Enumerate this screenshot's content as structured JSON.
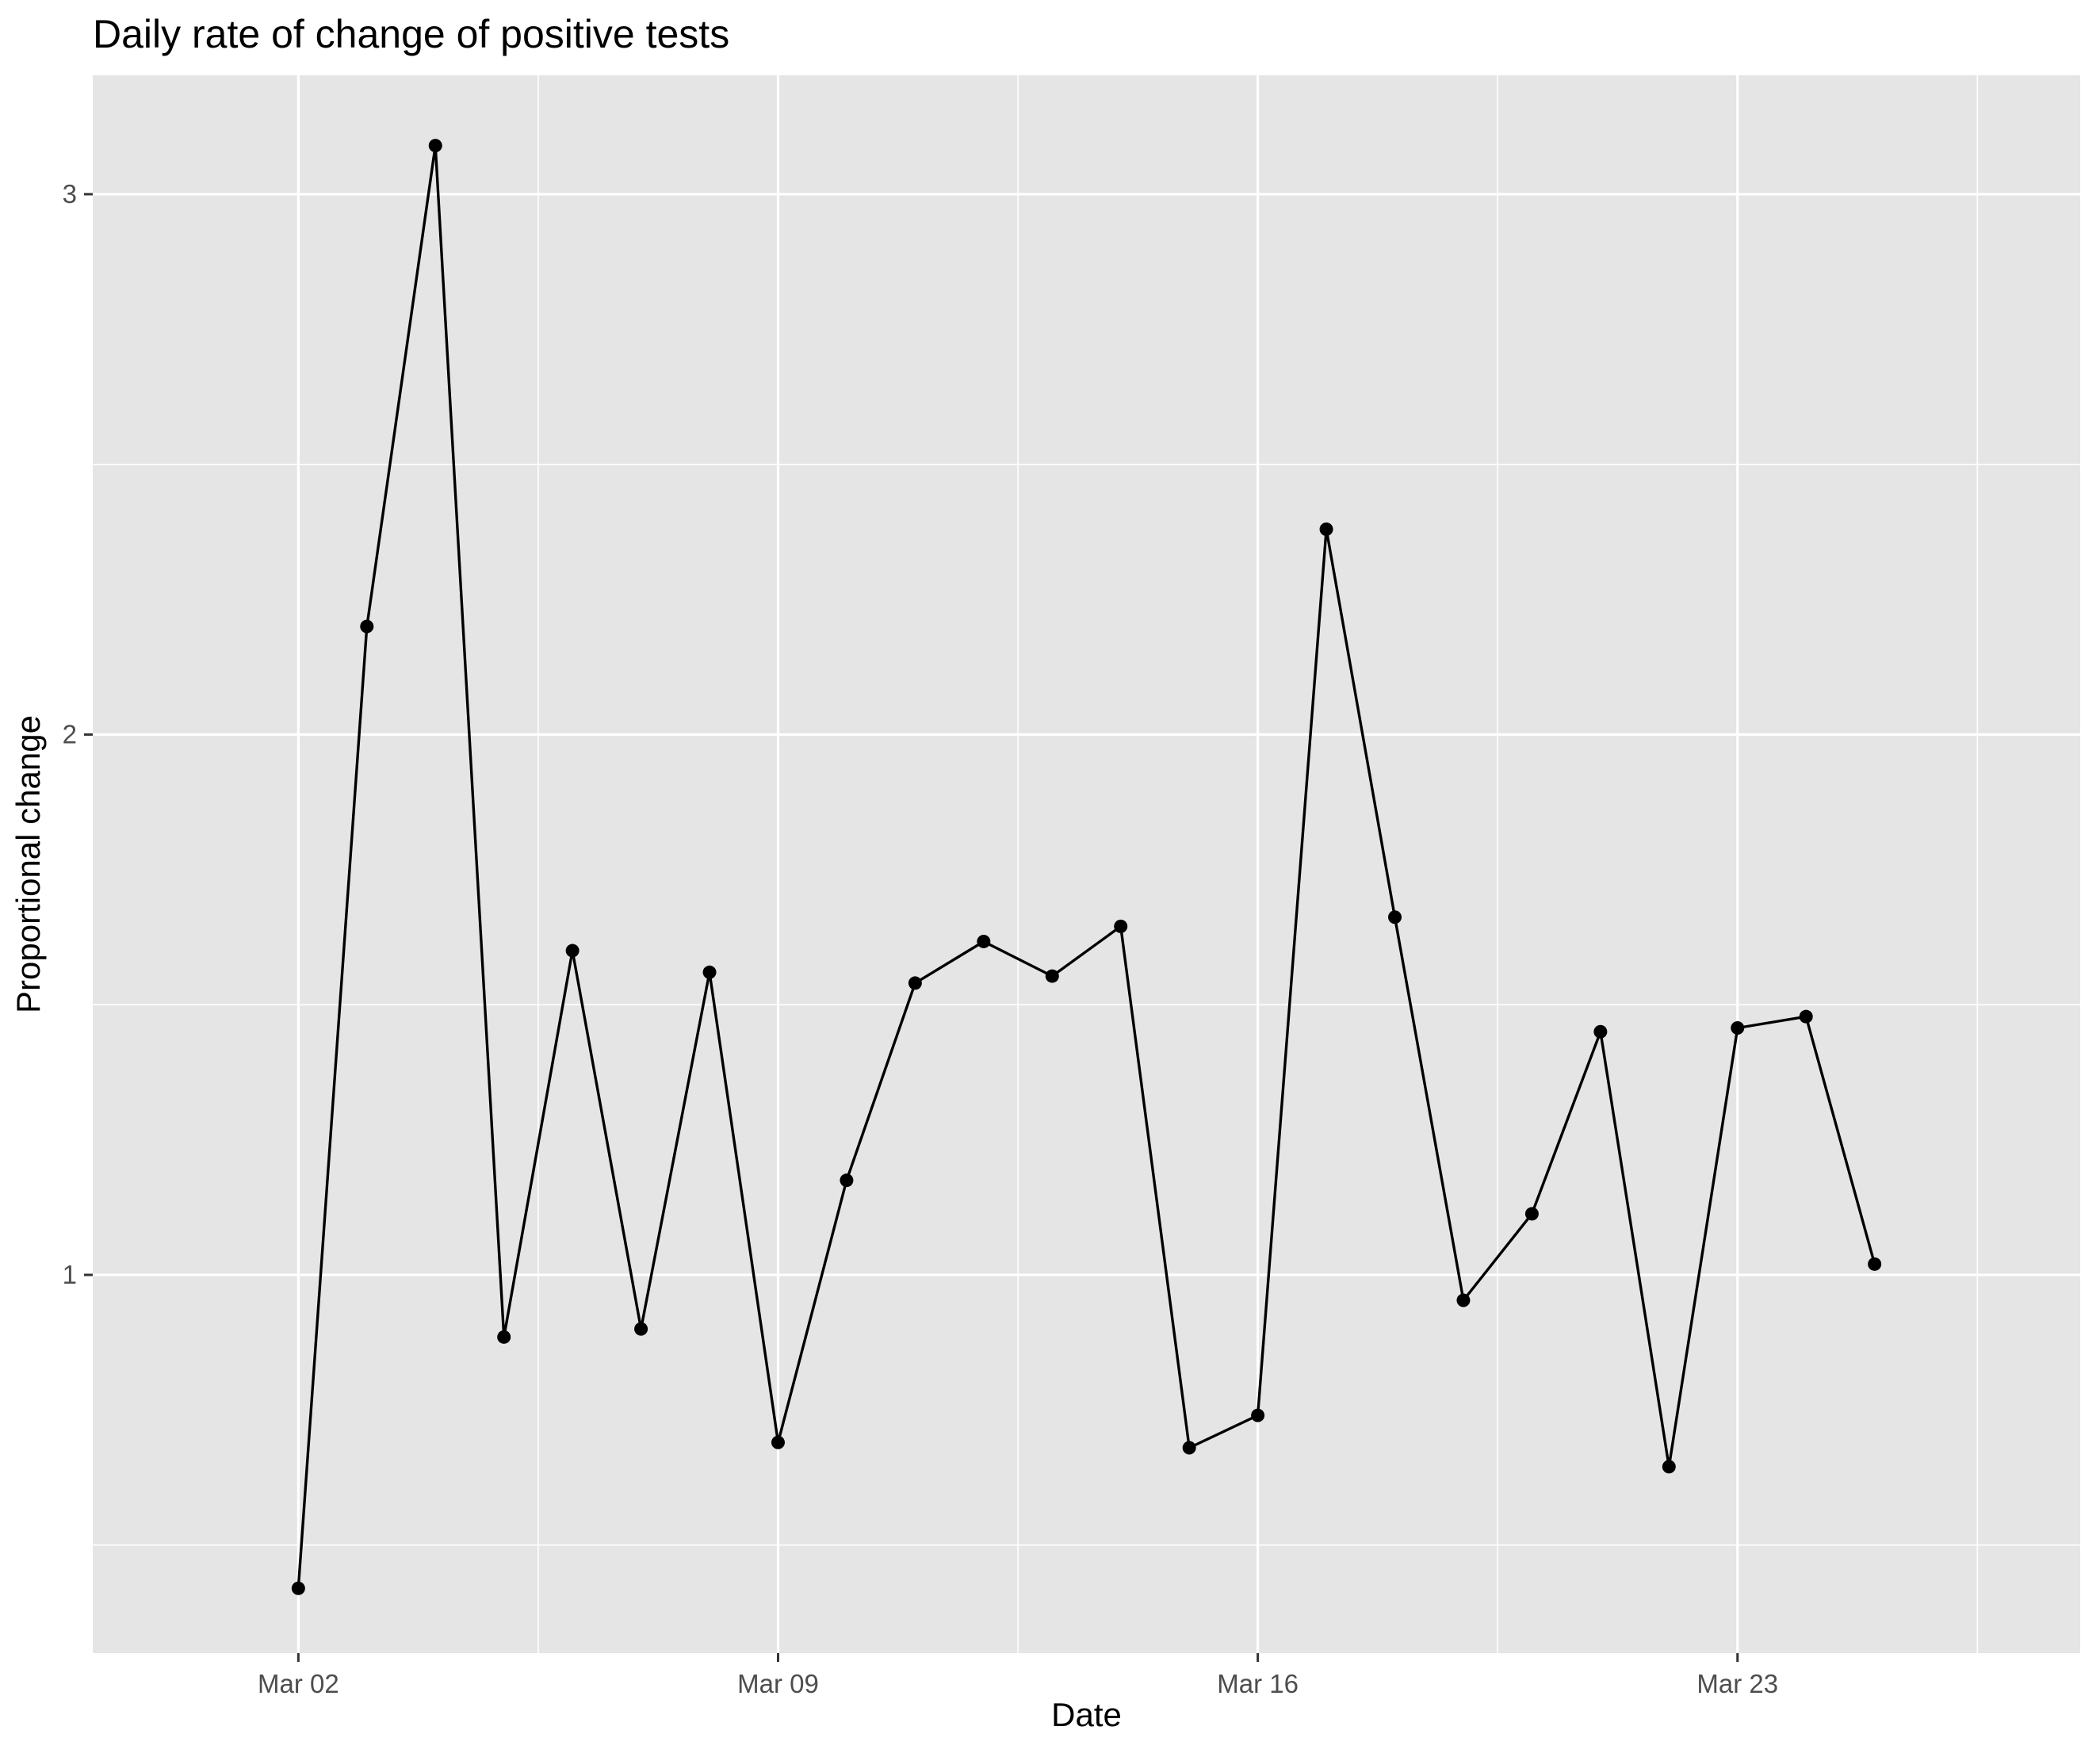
{
  "chart_data": {
    "type": "line",
    "title": "Daily rate of change of positive tests",
    "xlabel": "Date",
    "ylabel": "Proportional change",
    "x_ticks": [
      {
        "date": "2020-03-02",
        "label": "Mar 02"
      },
      {
        "date": "2020-03-09",
        "label": "Mar 09"
      },
      {
        "date": "2020-03-16",
        "label": "Mar 16"
      },
      {
        "date": "2020-03-23",
        "label": "Mar 23"
      }
    ],
    "y_ticks": [
      1,
      2,
      3
    ],
    "xlim": [
      "2020-02-28",
      "2020-03-28"
    ],
    "ylim": [
      0.3,
      3.22
    ],
    "grid": true,
    "panel_background": "#e5e5e5",
    "grid_color": "#ffffff",
    "line_color": "#000000",
    "point_color": "#000000",
    "series": [
      {
        "x": [
          "2020-03-02",
          "2020-03-03",
          "2020-03-04",
          "2020-03-05",
          "2020-03-06",
          "2020-03-07",
          "2020-03-08",
          "2020-03-09",
          "2020-03-10",
          "2020-03-11",
          "2020-03-12",
          "2020-03-13",
          "2020-03-14",
          "2020-03-15",
          "2020-03-16",
          "2020-03-17",
          "2020-03-18",
          "2020-03-19",
          "2020-03-20",
          "2020-03-21",
          "2020-03-22",
          "2020-03-23",
          "2020-03-24",
          "2020-03-25"
        ],
        "y": [
          0.42,
          2.2,
          3.09,
          0.885,
          1.6,
          0.9,
          1.56,
          0.69,
          1.175,
          1.54,
          1.617,
          1.553,
          1.645,
          0.68,
          0.74,
          2.38,
          1.662,
          0.953,
          1.113,
          1.45,
          0.645,
          1.457,
          1.478,
          1.02
        ]
      }
    ]
  }
}
